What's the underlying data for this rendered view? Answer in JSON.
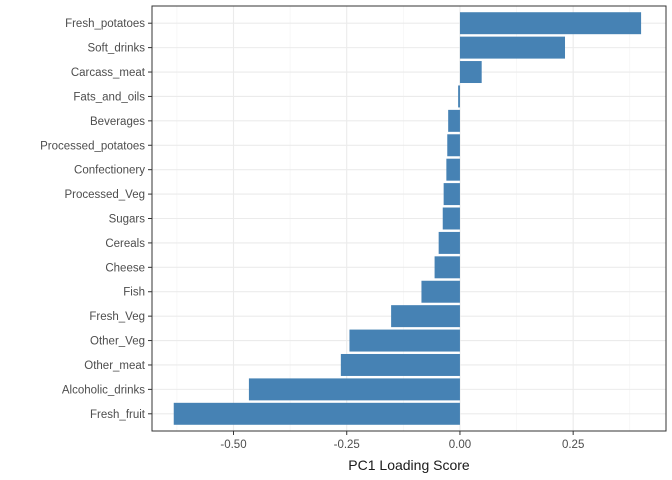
{
  "chart_data": {
    "type": "bar",
    "orientation": "horizontal",
    "title": "",
    "xlabel": "PC1 Loading Score",
    "ylabel": "",
    "bar_color": "#4682b4",
    "grid": true,
    "xlim": [
      -0.68,
      0.455
    ],
    "x_ticks": [
      -0.5,
      -0.25,
      0.0,
      0.25
    ],
    "x_tick_labels": [
      "-0.50",
      "-0.25",
      "0.00",
      "0.25"
    ],
    "categories": [
      "Fresh_potatoes",
      "Soft_drinks",
      "Carcass_meat",
      "Fats_and_oils",
      "Beverages",
      "Processed_potatoes",
      "Confectionery",
      "Processed_Veg",
      "Sugars",
      "Cereals",
      "Cheese",
      "Fish",
      "Fresh_Veg",
      "Other_Veg",
      "Other_meat",
      "Alcoholic_drinks",
      "Fresh_fruit"
    ],
    "values": [
      0.4,
      0.232,
      0.048,
      -0.004,
      -0.026,
      -0.028,
      -0.03,
      -0.036,
      -0.038,
      -0.047,
      -0.056,
      -0.085,
      -0.152,
      -0.244,
      -0.263,
      -0.466,
      -0.632
    ]
  }
}
